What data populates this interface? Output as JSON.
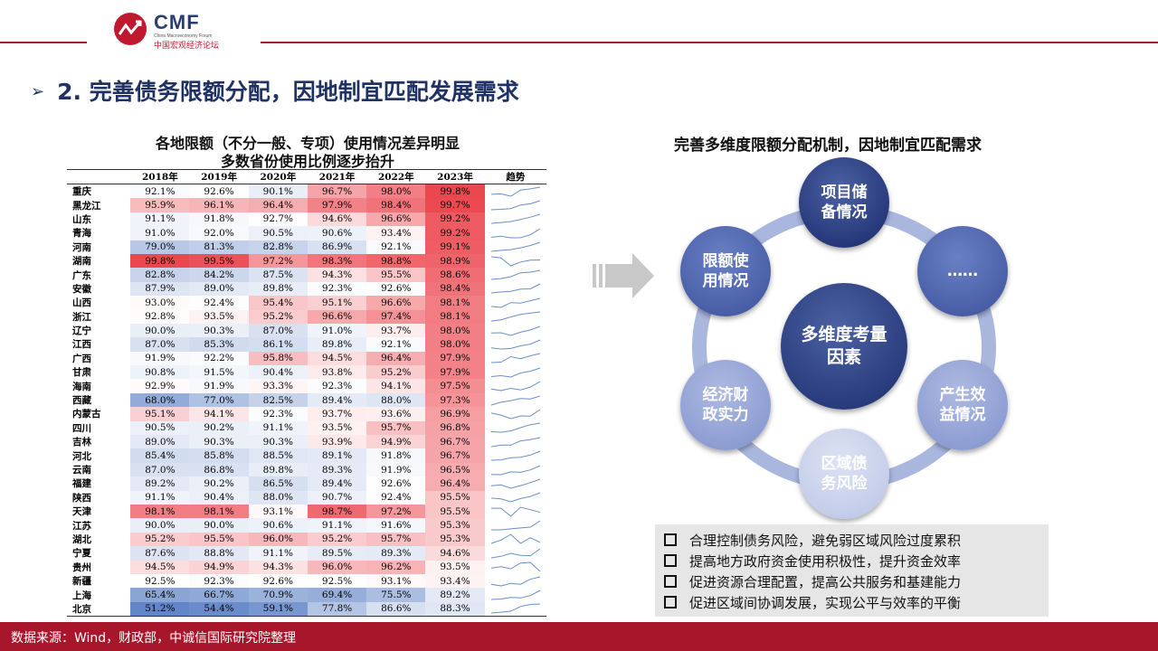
{
  "header": {
    "logo_text": "CMF",
    "logo_sub_en": "China Macroeconomy Forum",
    "logo_sub_cn": "中国宏观经济论坛",
    "brand_color": "#a8162c"
  },
  "section_title": "2. 完善债务限额分配，因地制宜匹配发展需求",
  "table": {
    "title_line1": "各地限额（不分一般、专项）使用情况差异明显",
    "title_line2": "多数省份使用比例逐步抬升",
    "columns": [
      "",
      "2018年",
      "2019年",
      "2020年",
      "2021年",
      "2022年",
      "2023年",
      "趋势"
    ],
    "rows": [
      {
        "prov": "重庆",
        "v": [
          "92.1%",
          "92.6%",
          "90.1%",
          "96.7%",
          "98.0%",
          "99.8%"
        ]
      },
      {
        "prov": "黑龙江",
        "v": [
          "95.9%",
          "96.1%",
          "96.4%",
          "97.9%",
          "98.4%",
          "99.7%"
        ]
      },
      {
        "prov": "山东",
        "v": [
          "91.1%",
          "91.8%",
          "92.7%",
          "94.6%",
          "96.6%",
          "99.2%"
        ]
      },
      {
        "prov": "青海",
        "v": [
          "91.0%",
          "92.0%",
          "90.5%",
          "90.6%",
          "93.4%",
          "99.2%"
        ]
      },
      {
        "prov": "河南",
        "v": [
          "79.0%",
          "81.3%",
          "82.8%",
          "86.9%",
          "92.1%",
          "99.1%"
        ]
      },
      {
        "prov": "湖南",
        "v": [
          "99.8%",
          "99.5%",
          "97.2%",
          "98.3%",
          "98.8%",
          "98.9%"
        ]
      },
      {
        "prov": "广东",
        "v": [
          "82.8%",
          "84.2%",
          "87.5%",
          "94.3%",
          "95.5%",
          "98.6%"
        ]
      },
      {
        "prov": "安徽",
        "v": [
          "87.9%",
          "89.0%",
          "89.8%",
          "92.3%",
          "92.6%",
          "98.4%"
        ]
      },
      {
        "prov": "山西",
        "v": [
          "93.0%",
          "92.4%",
          "95.4%",
          "95.1%",
          "96.6%",
          "98.1%"
        ]
      },
      {
        "prov": "浙江",
        "v": [
          "92.8%",
          "93.5%",
          "95.2%",
          "96.6%",
          "97.4%",
          "98.1%"
        ]
      },
      {
        "prov": "辽宁",
        "v": [
          "90.0%",
          "90.3%",
          "87.0%",
          "91.0%",
          "93.7%",
          "98.0%"
        ]
      },
      {
        "prov": "江西",
        "v": [
          "87.0%",
          "85.3%",
          "86.1%",
          "89.8%",
          "92.1%",
          "98.0%"
        ]
      },
      {
        "prov": "广西",
        "v": [
          "91.9%",
          "92.2%",
          "95.8%",
          "94.5%",
          "96.4%",
          "97.9%"
        ]
      },
      {
        "prov": "甘肃",
        "v": [
          "90.8%",
          "91.5%",
          "90.4%",
          "93.8%",
          "95.2%",
          "97.9%"
        ]
      },
      {
        "prov": "海南",
        "v": [
          "92.9%",
          "91.9%",
          "93.3%",
          "92.3%",
          "94.1%",
          "97.5%"
        ]
      },
      {
        "prov": "西藏",
        "v": [
          "68.0%",
          "77.0%",
          "82.5%",
          "89.4%",
          "88.0%",
          "97.3%"
        ]
      },
      {
        "prov": "内蒙古",
        "v": [
          "95.1%",
          "94.1%",
          "92.3%",
          "93.7%",
          "93.6%",
          "96.9%"
        ]
      },
      {
        "prov": "四川",
        "v": [
          "90.5%",
          "90.2%",
          "91.1%",
          "93.5%",
          "95.7%",
          "96.8%"
        ]
      },
      {
        "prov": "吉林",
        "v": [
          "89.0%",
          "90.3%",
          "90.3%",
          "93.9%",
          "94.9%",
          "96.7%"
        ]
      },
      {
        "prov": "河北",
        "v": [
          "85.4%",
          "85.8%",
          "88.5%",
          "89.1%",
          "91.8%",
          "96.7%"
        ]
      },
      {
        "prov": "云南",
        "v": [
          "87.0%",
          "86.8%",
          "89.8%",
          "89.3%",
          "91.9%",
          "96.5%"
        ]
      },
      {
        "prov": "福建",
        "v": [
          "89.2%",
          "90.2%",
          "86.5%",
          "89.4%",
          "92.6%",
          "96.4%"
        ]
      },
      {
        "prov": "陕西",
        "v": [
          "91.1%",
          "90.4%",
          "88.0%",
          "90.7%",
          "92.4%",
          "95.5%"
        ]
      },
      {
        "prov": "天津",
        "v": [
          "98.1%",
          "98.1%",
          "93.1%",
          "98.7%",
          "97.2%",
          "95.5%"
        ]
      },
      {
        "prov": "江苏",
        "v": [
          "90.0%",
          "90.0%",
          "90.6%",
          "91.1%",
          "91.6%",
          "95.3%"
        ]
      },
      {
        "prov": "湖北",
        "v": [
          "95.2%",
          "95.5%",
          "96.0%",
          "95.2%",
          "95.7%",
          "95.3%"
        ]
      },
      {
        "prov": "宁夏",
        "v": [
          "87.6%",
          "88.8%",
          "91.1%",
          "89.5%",
          "89.3%",
          "94.6%"
        ]
      },
      {
        "prov": "贵州",
        "v": [
          "94.5%",
          "94.9%",
          "94.3%",
          "96.0%",
          "96.2%",
          "93.5%"
        ]
      },
      {
        "prov": "新疆",
        "v": [
          "92.5%",
          "92.3%",
          "92.6%",
          "92.5%",
          "93.1%",
          "93.4%"
        ]
      },
      {
        "prov": "上海",
        "v": [
          "65.4%",
          "66.7%",
          "70.9%",
          "69.4%",
          "75.5%",
          "89.2%"
        ]
      },
      {
        "prov": "北京",
        "v": [
          "51.2%",
          "54.4%",
          "59.1%",
          "77.8%",
          "86.6%",
          "88.3%"
        ]
      }
    ],
    "heat_colors": {
      "high": "#e8262f",
      "mid": "#fbeaea",
      "low": "#5a7fc4"
    }
  },
  "diagram": {
    "title": "完善多维度限额分配机制，因地制宜匹配需求",
    "center": "多维度考量\n因素",
    "nodes": {
      "top": "项目储\n备情况",
      "upper_right": "……",
      "lower_right": "产生效\n益情况",
      "bottom": "区域债\n务风险",
      "lower_left": "经济财\n政实力",
      "upper_left": "限额使\n用情况"
    }
  },
  "bullets": [
    "合理控制债务风险，避免弱区域风险过度累积",
    "提高地方政府资金使用积极性，提升资金效率",
    "促进资源合理配置，提高公共服务和基建能力",
    "促进区域间协调发展，实现公平与效率的平衡"
  ],
  "footer": "数据来源：Wind，财政部，中诚信国际研究院整理"
}
